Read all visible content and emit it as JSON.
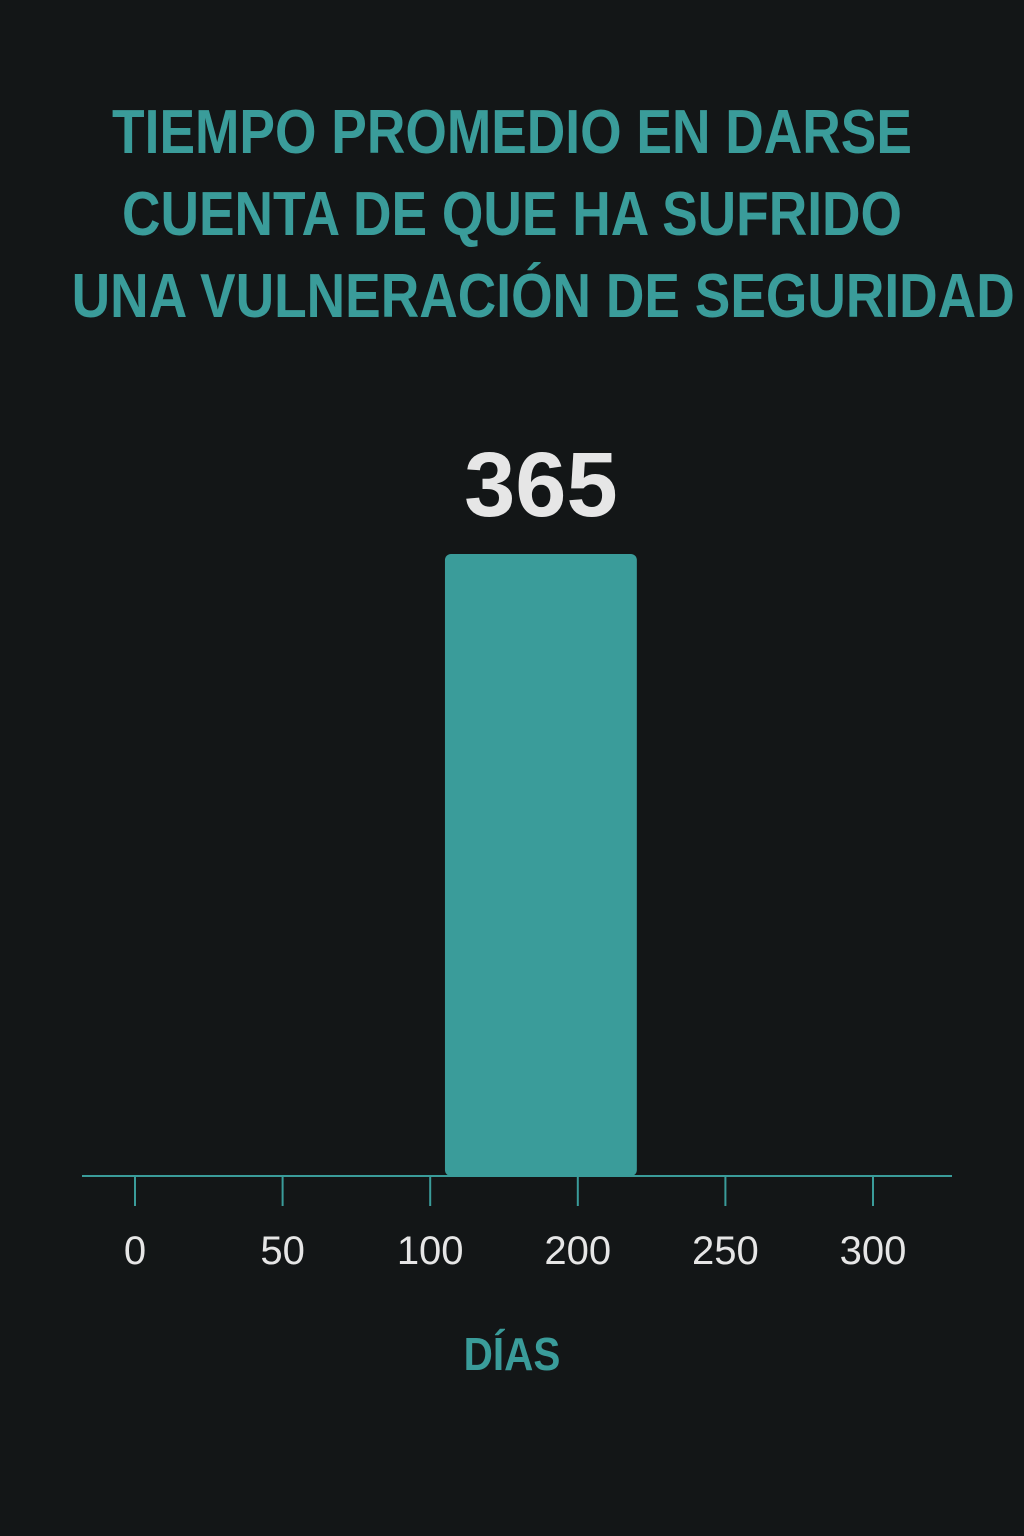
{
  "title_lines": [
    "TIEMPO PROMEDIO EN DARSE",
    "CUENTA DE QUE HA SUFRIDO",
    "UNA VULNERACIÓN DE SEGURIDAD"
  ],
  "colors": {
    "background": "#131617",
    "accent": "#3a9c9a",
    "value_label": "#e6e6e6",
    "tick_label": "#e6e6e6"
  },
  "chart_data": {
    "type": "bar",
    "title": "TIEMPO PROMEDIO EN DARSE CUENTA DE QUE HA SUFRIDO UNA VULNERACIÓN DE SEGURIDAD",
    "xlabel": "DÍAS",
    "ylabel": "",
    "x_ticks": [
      "0",
      "50",
      "100",
      "200",
      "250",
      "300"
    ],
    "bar": {
      "value": 365,
      "value_label": "365",
      "x_start_tick_index": 2.1,
      "x_end_tick_index": 3.4
    },
    "ylim": [
      0,
      365
    ],
    "grid": false,
    "legend": "none"
  }
}
